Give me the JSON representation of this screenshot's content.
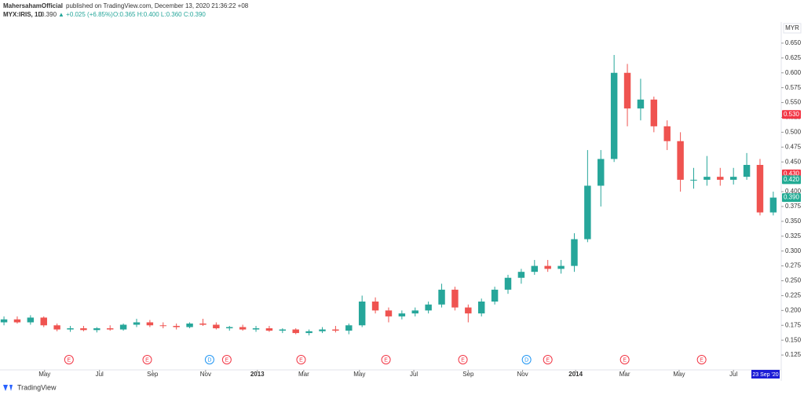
{
  "chart_data": {
    "type": "candlestick",
    "publisher": "MahersahamOfficial",
    "published": "published on TradingView.com, December 13, 2020 21:36:22 +08",
    "symbol": "MYX:IRIS, 1D",
    "last": "0.390",
    "change": "▲ +0.025 (+6.85%)",
    "ohlc_text": "O:0.365 H:0.400 L:0.360 C:0.390",
    "currency": "MYR",
    "brand": "TradingView",
    "cursor_label": "23 Sep '20",
    "up_color": "#26a69a",
    "down_color": "#ef5350",
    "grid": false,
    "xlim": [
      -0.3,
      58.6
    ],
    "ylim": [
      0.1,
      0.675
    ],
    "xticks": [
      {
        "value": 3.06,
        "label": "May"
      },
      {
        "value": 7.2,
        "label": "Jul"
      },
      {
        "value": 11.2,
        "label": "Sep"
      },
      {
        "value": 15.2,
        "label": "Nov"
      },
      {
        "value": 19.1,
        "label": "2013"
      },
      {
        "value": 22.6,
        "label": "Mar"
      },
      {
        "value": 26.8,
        "label": "May"
      },
      {
        "value": 30.9,
        "label": "Jul"
      },
      {
        "value": 35,
        "label": "Sep"
      },
      {
        "value": 39.1,
        "label": "Nov"
      },
      {
        "value": 43.1,
        "label": "2014"
      },
      {
        "value": 46.8,
        "label": "Mar"
      },
      {
        "value": 50.9,
        "label": "May"
      },
      {
        "value": 55,
        "label": "Jul"
      }
    ],
    "yticks": [
      {
        "value": 0.125,
        "label": "0.125"
      },
      {
        "value": 0.15,
        "label": "0.150"
      },
      {
        "value": 0.175,
        "label": "0.175"
      },
      {
        "value": 0.2,
        "label": "0.200"
      },
      {
        "value": 0.225,
        "label": "0.225"
      },
      {
        "value": 0.25,
        "label": "0.250"
      },
      {
        "value": 0.275,
        "label": "0.275"
      },
      {
        "value": 0.3,
        "label": "0.300"
      },
      {
        "value": 0.325,
        "label": "0.325"
      },
      {
        "value": 0.35,
        "label": "0.350"
      },
      {
        "value": 0.375,
        "label": "0.375"
      },
      {
        "value": 0.4,
        "label": "0.400"
      },
      {
        "value": 0.45,
        "label": "0.450"
      },
      {
        "value": 0.475,
        "label": "0.475"
      },
      {
        "value": 0.5,
        "label": "0.500"
      },
      {
        "value": 0.525,
        "label": "0.525"
      },
      {
        "value": 0.55,
        "label": "0.550"
      },
      {
        "value": 0.575,
        "label": "0.575"
      },
      {
        "value": 0.6,
        "label": "0.600"
      },
      {
        "value": 0.625,
        "label": "0.625"
      },
      {
        "value": 0.65,
        "label": "0.650"
      }
    ],
    "price_labels": [
      {
        "value": 0.53,
        "label": "0.530",
        "color": "#f23645"
      },
      {
        "value": 0.43,
        "label": "0.430",
        "color": "#f23645"
      },
      {
        "value": 0.42,
        "label": "0.420",
        "color": "#22ab94"
      },
      {
        "value": 0.39,
        "label": "0.390",
        "color": "#22ab94"
      }
    ],
    "events": [
      {
        "x": 4.9,
        "label": "E"
      },
      {
        "x": 10.8,
        "label": "E"
      },
      {
        "x": 15.5,
        "label": "D"
      },
      {
        "x": 16.8,
        "label": "E"
      },
      {
        "x": 22.4,
        "label": "E"
      },
      {
        "x": 28.8,
        "label": "E"
      },
      {
        "x": 34.6,
        "label": "E"
      },
      {
        "x": 39.4,
        "label": "D"
      },
      {
        "x": 41,
        "label": "E"
      },
      {
        "x": 46.8,
        "label": "E"
      },
      {
        "x": 52.6,
        "label": "E"
      }
    ],
    "open": [
      0.18,
      0.185,
      0.18,
      0.188,
      0.175,
      0.168,
      0.17,
      0.167,
      0.17,
      0.168,
      0.176,
      0.18,
      0.175,
      0.174,
      0.172,
      0.178,
      0.176,
      0.17,
      0.172,
      0.168,
      0.17,
      0.166,
      0.168,
      0.162,
      0.165,
      0.168,
      0.166,
      0.175,
      0.215,
      0.2,
      0.19,
      0.195,
      0.2,
      0.21,
      0.235,
      0.205,
      0.195,
      0.215,
      0.235,
      0.255,
      0.265,
      0.275,
      0.27,
      0.275,
      0.32,
      0.41,
      0.455,
      0.6,
      0.54,
      0.555,
      0.51,
      0.485,
      0.42,
      0.42,
      0.425,
      0.42,
      0.425,
      0.445,
      0.365
    ],
    "high": [
      0.19,
      0.19,
      0.192,
      0.19,
      0.178,
      0.174,
      0.174,
      0.172,
      0.175,
      0.178,
      0.186,
      0.184,
      0.18,
      0.178,
      0.18,
      0.186,
      0.18,
      0.174,
      0.176,
      0.174,
      0.174,
      0.17,
      0.17,
      0.168,
      0.172,
      0.174,
      0.178,
      0.225,
      0.222,
      0.205,
      0.2,
      0.205,
      0.215,
      0.245,
      0.24,
      0.21,
      0.22,
      0.24,
      0.26,
      0.27,
      0.285,
      0.285,
      0.285,
      0.33,
      0.47,
      0.47,
      0.63,
      0.615,
      0.59,
      0.56,
      0.52,
      0.5,
      0.44,
      0.46,
      0.44,
      0.44,
      0.465,
      0.455,
      0.4
    ],
    "low": [
      0.175,
      0.178,
      0.176,
      0.172,
      0.165,
      0.164,
      0.165,
      0.163,
      0.166,
      0.166,
      0.172,
      0.172,
      0.17,
      0.168,
      0.17,
      0.174,
      0.168,
      0.166,
      0.166,
      0.164,
      0.164,
      0.162,
      0.16,
      0.158,
      0.162,
      0.163,
      0.16,
      0.172,
      0.195,
      0.18,
      0.185,
      0.19,
      0.195,
      0.205,
      0.2,
      0.18,
      0.19,
      0.21,
      0.228,
      0.245,
      0.26,
      0.265,
      0.262,
      0.265,
      0.315,
      0.375,
      0.45,
      0.51,
      0.52,
      0.5,
      0.47,
      0.4,
      0.405,
      0.41,
      0.41,
      0.412,
      0.42,
      0.36,
      0.36
    ],
    "close": [
      0.185,
      0.18,
      0.188,
      0.175,
      0.168,
      0.17,
      0.167,
      0.17,
      0.168,
      0.176,
      0.18,
      0.175,
      0.174,
      0.172,
      0.178,
      0.176,
      0.17,
      0.172,
      0.168,
      0.17,
      0.166,
      0.168,
      0.162,
      0.165,
      0.168,
      0.166,
      0.175,
      0.215,
      0.2,
      0.19,
      0.195,
      0.2,
      0.21,
      0.235,
      0.205,
      0.195,
      0.215,
      0.235,
      0.255,
      0.265,
      0.275,
      0.27,
      0.275,
      0.32,
      0.41,
      0.455,
      0.6,
      0.54,
      0.555,
      0.51,
      0.485,
      0.42,
      0.42,
      0.425,
      0.42,
      0.425,
      0.445,
      0.365,
      0.39
    ]
  }
}
